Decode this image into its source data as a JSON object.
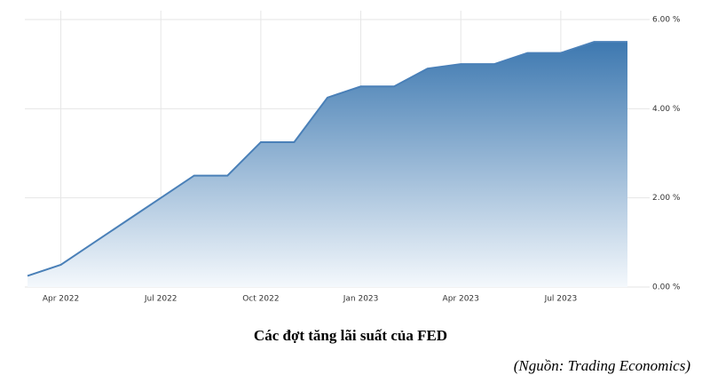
{
  "chart_data": {
    "type": "area",
    "title": "Các đợt tăng lãi suất của FED",
    "source": "(Nguồn: Trading Economics)",
    "color": "#4a80b8",
    "x": [
      "2022-03",
      "2022-04",
      "2022-05",
      "2022-06",
      "2022-07",
      "2022-08",
      "2022-09",
      "2022-10",
      "2022-11",
      "2022-12",
      "2023-01",
      "2023-02",
      "2023-03",
      "2023-04",
      "2023-05",
      "2023-06",
      "2023-07",
      "2023-08",
      "2023-09"
    ],
    "values": [
      0.25,
      0.5,
      1.0,
      1.5,
      2.0,
      2.5,
      2.5,
      3.25,
      3.25,
      4.25,
      4.5,
      4.5,
      4.9,
      5.0,
      5.0,
      5.25,
      5.25,
      5.5,
      5.5
    ],
    "xlim": [
      "2022-03",
      "2023-09"
    ],
    "xticks": [
      {
        "value": "2022-04",
        "label": "Apr 2022"
      },
      {
        "value": "2022-07",
        "label": "Jul 2022"
      },
      {
        "value": "2022-10",
        "label": "Oct 2022"
      },
      {
        "value": "2023-01",
        "label": "Jan 2023"
      },
      {
        "value": "2023-04",
        "label": "Apr 2023"
      },
      {
        "value": "2023-07",
        "label": "Jul 2023"
      }
    ],
    "ylim": [
      0,
      6
    ],
    "yticks": [
      {
        "value": 0,
        "label": "0.00 %"
      },
      {
        "value": 2,
        "label": "2.00 %"
      },
      {
        "value": 4,
        "label": "4.00 %"
      },
      {
        "value": 6,
        "label": "6.00 %"
      }
    ],
    "grid": true
  }
}
